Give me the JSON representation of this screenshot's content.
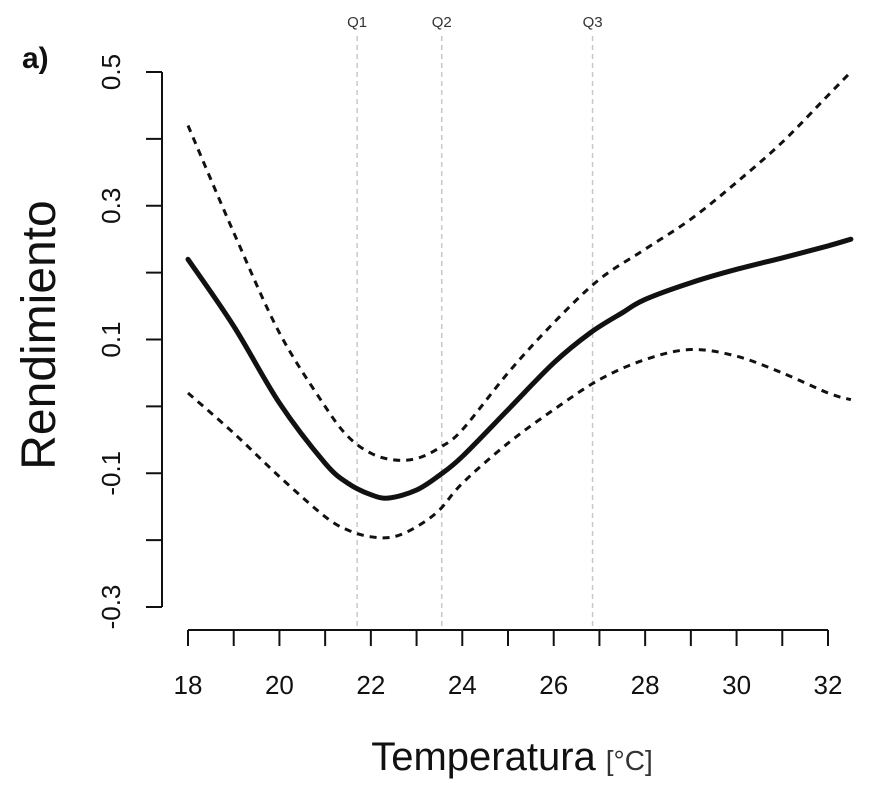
{
  "chart_data": {
    "type": "line",
    "panel_label": "a)",
    "xlabel": "Temperatura",
    "xlabel_unit": "[°C]",
    "ylabel": "Rendimiento",
    "xlim": [
      18,
      32.5
    ],
    "ylim": [
      -0.3,
      0.5
    ],
    "x_ticks": [
      18,
      20,
      22,
      24,
      26,
      28,
      30,
      32
    ],
    "x_minor_step": 1,
    "y_ticks": [
      -0.3,
      -0.1,
      0.1,
      0.3,
      0.5
    ],
    "y_minor_step": 0.1,
    "quantiles": [
      {
        "label": "Q1",
        "x": 21.7
      },
      {
        "label": "Q2",
        "x": 23.55
      },
      {
        "label": "Q3",
        "x": 26.85
      }
    ],
    "series": [
      {
        "name": "fit",
        "style": "solid",
        "x": [
          18,
          19,
          20,
          21,
          21.5,
          22,
          22.4,
          23,
          23.5,
          24,
          25,
          26,
          26.8,
          27.5,
          28,
          29,
          30,
          31,
          32,
          32.5
        ],
        "y": [
          0.22,
          0.12,
          0.005,
          -0.085,
          -0.115,
          -0.132,
          -0.137,
          -0.125,
          -0.103,
          -0.075,
          -0.005,
          0.065,
          0.11,
          0.14,
          0.16,
          0.185,
          0.205,
          0.222,
          0.24,
          0.25
        ]
      },
      {
        "name": "upper_ci",
        "style": "dashed",
        "x": [
          18,
          19,
          20,
          21,
          21.5,
          22,
          22.5,
          23,
          23.5,
          24,
          25,
          26,
          27,
          28,
          29,
          30,
          31,
          32,
          32.5
        ],
        "y": [
          0.42,
          0.26,
          0.11,
          0.0,
          -0.045,
          -0.07,
          -0.08,
          -0.078,
          -0.062,
          -0.035,
          0.05,
          0.125,
          0.19,
          0.235,
          0.28,
          0.335,
          0.395,
          0.465,
          0.5
        ]
      },
      {
        "name": "lower_ci",
        "style": "dashed",
        "x": [
          18,
          19,
          20,
          21,
          21.5,
          22,
          22.5,
          23,
          23.5,
          24,
          25,
          26,
          27,
          28,
          29,
          30,
          31,
          32,
          32.5
        ],
        "y": [
          0.02,
          -0.04,
          -0.105,
          -0.165,
          -0.185,
          -0.195,
          -0.195,
          -0.18,
          -0.155,
          -0.115,
          -0.055,
          -0.005,
          0.04,
          0.07,
          0.085,
          0.075,
          0.05,
          0.02,
          0.01
        ]
      }
    ]
  }
}
